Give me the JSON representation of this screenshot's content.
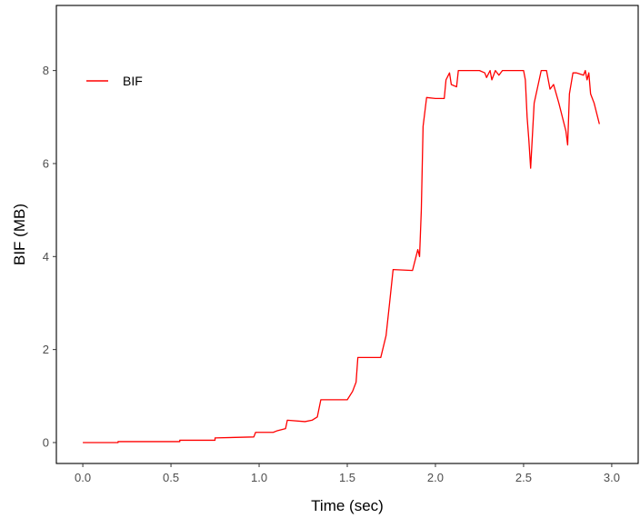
{
  "chart_data": {
    "type": "line",
    "xlabel": "Time (sec)",
    "ylabel": "BIF (MB)",
    "xlim": [
      -0.15,
      3.15
    ],
    "ylim": [
      -0.45,
      9.4
    ],
    "x_ticks": [
      0.0,
      0.5,
      1.0,
      1.5,
      2.0,
      2.5,
      3.0
    ],
    "x_tick_labels": [
      "0.0",
      "0.5",
      "1.0",
      "1.5",
      "2.0",
      "2.5",
      "3.0"
    ],
    "y_ticks": [
      0,
      2,
      4,
      6,
      8
    ],
    "y_tick_labels": [
      "0",
      "2",
      "4",
      "6",
      "8"
    ],
    "grid": false,
    "legend_position": "top-left",
    "line_color": "#ff0000",
    "series": [
      {
        "name": "BIF",
        "x": [
          0.0,
          0.2,
          0.2,
          0.55,
          0.55,
          0.75,
          0.75,
          0.97,
          0.98,
          1.08,
          1.1,
          1.15,
          1.16,
          1.26,
          1.3,
          1.33,
          1.35,
          1.5,
          1.53,
          1.55,
          1.56,
          1.69,
          1.72,
          1.74,
          1.76,
          1.87,
          1.89,
          1.9,
          1.91,
          1.92,
          1.93,
          1.95,
          2.0,
          2.05,
          2.06,
          2.08,
          2.09,
          2.12,
          2.13,
          2.16,
          2.2,
          2.25,
          2.28,
          2.29,
          2.31,
          2.32,
          2.34,
          2.36,
          2.38,
          2.5,
          2.51,
          2.52,
          2.53,
          2.54,
          2.56,
          2.6,
          2.62,
          2.63,
          2.65,
          2.67,
          2.7,
          2.74,
          2.75,
          2.76,
          2.78,
          2.8,
          2.84,
          2.85,
          2.86,
          2.87,
          2.88,
          2.89,
          2.9,
          2.92,
          2.93
        ],
        "y": [
          0.0,
          0.0,
          0.02,
          0.02,
          0.05,
          0.05,
          0.1,
          0.12,
          0.22,
          0.22,
          0.25,
          0.3,
          0.48,
          0.45,
          0.48,
          0.55,
          0.92,
          0.92,
          1.1,
          1.3,
          1.83,
          1.83,
          2.3,
          3.0,
          3.72,
          3.7,
          4.0,
          4.15,
          4.0,
          5.0,
          6.8,
          7.42,
          7.4,
          7.4,
          7.8,
          7.95,
          7.7,
          7.65,
          8.0,
          8.0,
          8.0,
          8.0,
          7.95,
          7.85,
          8.0,
          7.8,
          8.0,
          7.9,
          8.0,
          8.0,
          7.8,
          7.0,
          6.5,
          5.9,
          7.3,
          8.0,
          8.0,
          8.0,
          7.6,
          7.7,
          7.3,
          6.7,
          6.4,
          7.5,
          7.95,
          7.95,
          7.9,
          8.0,
          7.8,
          7.95,
          7.5,
          7.4,
          7.3,
          7.0,
          6.85
        ]
      }
    ]
  }
}
